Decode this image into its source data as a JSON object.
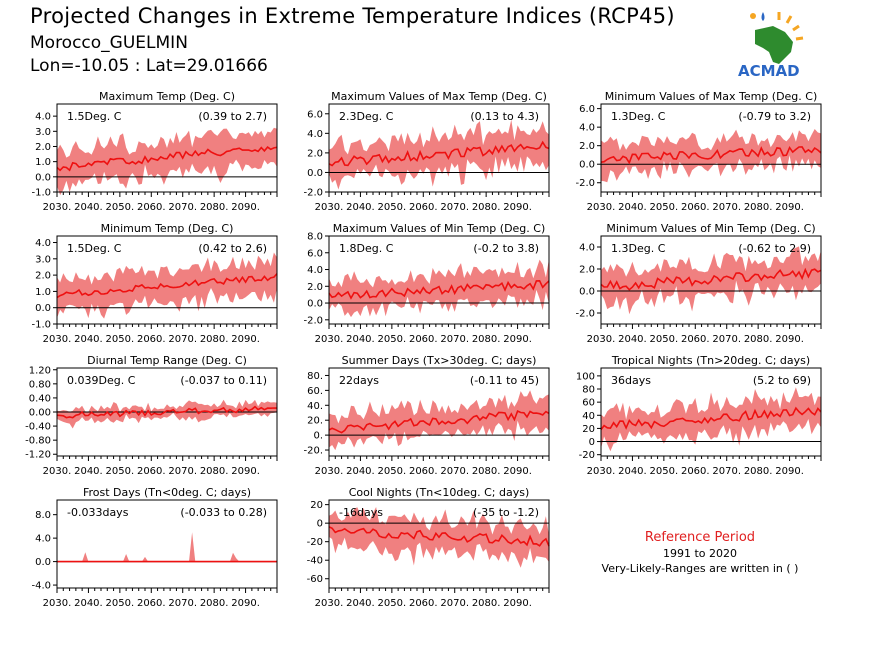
{
  "header": {
    "title": "Projected Changes in Extreme Temperature Indices (RCP45)",
    "region": "Morocco_GUELMIN",
    "coords": "Lon=-10.05 : Lat=29.01666",
    "logo_text": "ACMAD"
  },
  "reference": {
    "title": "Reference Period",
    "years": "1991 to 2020",
    "note": "Very-Likely-Ranges are written in ( )"
  },
  "colors": {
    "band": "#f08080",
    "line": "#ee1111",
    "zero": "#000000"
  },
  "chart_data": [
    {
      "type": "area",
      "title": "Maximum Temp (Deg. C)",
      "value_label": "1.5Deg. C",
      "range_label": "(0.39 to 2.7)",
      "ylim": [
        -1.0,
        4.8
      ],
      "yticks": [
        -1.0,
        0.0,
        1.0,
        2.0,
        3.0,
        4.0
      ],
      "ytick_labels": [
        "-1.0",
        "0.0",
        "1.0",
        "2.0",
        "3.0",
        "4.0"
      ],
      "start": 0.6,
      "end": 2.0,
      "noise": 0.25,
      "band": 1.1,
      "seed": 1
    },
    {
      "type": "area",
      "title": "Maximum Values of Max Temp (Deg. C)",
      "value_label": "2.3Deg. C",
      "range_label": "(0.13 to 4.3)",
      "ylim": [
        -2.0,
        7.0
      ],
      "yticks": [
        -2.0,
        0.0,
        2.0,
        4.0,
        6.0
      ],
      "ytick_labels": [
        "-2.0",
        "0.0",
        "2.0",
        "4.0",
        "6.0"
      ],
      "start": 1.0,
      "end": 2.7,
      "noise": 0.5,
      "band": 1.8,
      "seed": 2
    },
    {
      "type": "area",
      "title": "Minimum Values of Max Temp (Deg. C)",
      "value_label": "1.3Deg. C",
      "range_label": "(-0.79 to 3.2)",
      "ylim": [
        -3.0,
        6.5
      ],
      "yticks": [
        -2.0,
        0.0,
        2.0,
        4.0,
        6.0
      ],
      "ytick_labels": [
        "-2.0",
        "0.0",
        "2.0",
        "4.0",
        "6.0"
      ],
      "start": 0.5,
      "end": 1.6,
      "noise": 0.5,
      "band": 1.6,
      "seed": 3
    },
    {
      "type": "area",
      "title": "Minimum Temp (Deg. C)",
      "value_label": "1.5Deg. C",
      "range_label": "(0.42 to 2.6)",
      "ylim": [
        -1.0,
        4.4
      ],
      "yticks": [
        -1.0,
        0.0,
        1.0,
        2.0,
        3.0,
        4.0
      ],
      "ytick_labels": [
        "-1.0",
        "0.0",
        "1.0",
        "2.0",
        "3.0",
        "4.0"
      ],
      "start": 0.8,
      "end": 1.9,
      "noise": 0.2,
      "band": 1.0,
      "seed": 4
    },
    {
      "type": "area",
      "title": "Maximum Values of Min Temp (Deg. C)",
      "value_label": "1.8Deg. C",
      "range_label": "(-0.2 to 3.8)",
      "ylim": [
        -2.5,
        8.0
      ],
      "yticks": [
        -2.0,
        0.0,
        2.0,
        4.0,
        6.0,
        8.0
      ],
      "ytick_labels": [
        "-2.0",
        "0.0",
        "2.0",
        "4.0",
        "6.0",
        "8.0"
      ],
      "start": 0.8,
      "end": 2.3,
      "noise": 0.5,
      "band": 1.7,
      "seed": 5
    },
    {
      "type": "area",
      "title": "Minimum Values of Min Temp (Deg. C)",
      "value_label": "1.3Deg. C",
      "range_label": "(-0.62 to 2.9)",
      "ylim": [
        -3.0,
        5.0
      ],
      "yticks": [
        -2.0,
        0.0,
        2.0,
        4.0
      ],
      "ytick_labels": [
        "-2.0",
        "0.0",
        "2.0",
        "4.0"
      ],
      "start": 0.4,
      "end": 1.7,
      "noise": 0.45,
      "band": 1.5,
      "seed": 6
    },
    {
      "type": "area",
      "title": "Diurnal Temp Range (Deg. C)",
      "value_label": "0.039Deg. C",
      "range_label": "(-0.037 to 0.11)",
      "ylim": [
        -1.25,
        1.25
      ],
      "yticks": [
        -1.2,
        -0.8,
        -0.4,
        0.0,
        0.4,
        0.8,
        1.2
      ],
      "ytick_labels": [
        "-1.20",
        "-0.80",
        "-0.40",
        "0.00",
        "0.40",
        "0.80",
        "1.20"
      ],
      "start": -0.1,
      "end": 0.1,
      "noise": 0.08,
      "band": 0.18,
      "seed": 7
    },
    {
      "type": "area",
      "title": "Summer Days (Tx>30deg. C; days)",
      "value_label": "22days",
      "range_label": "(-0.11 to 45)",
      "ylim": [
        -28,
        90
      ],
      "yticks": [
        -20,
        0,
        20,
        40,
        60,
        80
      ],
      "ytick_labels": [
        "-20.",
        "0.",
        "20.",
        "40.",
        "60.",
        "80."
      ],
      "start": 8,
      "end": 30,
      "noise": 6,
      "band": 18,
      "seed": 8
    },
    {
      "type": "area",
      "title": "Tropical Nights (Tn>20deg. C; days)",
      "value_label": "36days",
      "range_label": "(5.2 to 69)",
      "ylim": [
        -22,
        112
      ],
      "yticks": [
        -20,
        0,
        20,
        40,
        60,
        80,
        100
      ],
      "ytick_labels": [
        "-20",
        "0",
        "20",
        "40",
        "60",
        "80",
        "100"
      ],
      "start": 22,
      "end": 48,
      "noise": 7,
      "band": 22,
      "seed": 9
    },
    {
      "type": "area",
      "title": "Frost Days (Tn<0deg. C; days)",
      "value_label": "-0.033days",
      "range_label": "(-0.033 to 0.28)",
      "ylim": [
        -4.5,
        10.5
      ],
      "yticks": [
        -4.0,
        0.0,
        4.0,
        8.0
      ],
      "ytick_labels": [
        "-4.0",
        "0.0",
        "4.0",
        "8.0"
      ],
      "start": 0,
      "end": 0,
      "noise": 0,
      "band": 0,
      "seed": 10,
      "spikes": [
        [
          2039,
          1.6
        ],
        [
          2052,
          1.3
        ],
        [
          2058,
          0.8
        ],
        [
          2073,
          5.0
        ],
        [
          2086,
          1.5
        ],
        [
          2087,
          0.6
        ]
      ]
    },
    {
      "type": "area",
      "title": "Cool Nights (Tn<10deg. C; days)",
      "value_label": "-16days",
      "range_label": "(-35 to -1.2)",
      "ylim": [
        -70,
        25
      ],
      "yticks": [
        -60,
        -40,
        -20,
        0,
        20
      ],
      "ytick_labels": [
        "-60",
        "-40",
        "-20",
        "0",
        "20"
      ],
      "start": -8,
      "end": -20,
      "noise": 5,
      "band": 17,
      "seed": 11
    }
  ],
  "x_axis": {
    "ticks": [
      2030,
      2040,
      2050,
      2060,
      2070,
      2080,
      2090
    ],
    "tick_labels": [
      "2030.",
      "2040.",
      "2050.",
      "2060.",
      "2070.",
      "2080.",
      "2090."
    ],
    "xmin": 2030,
    "xmax": 2100
  }
}
